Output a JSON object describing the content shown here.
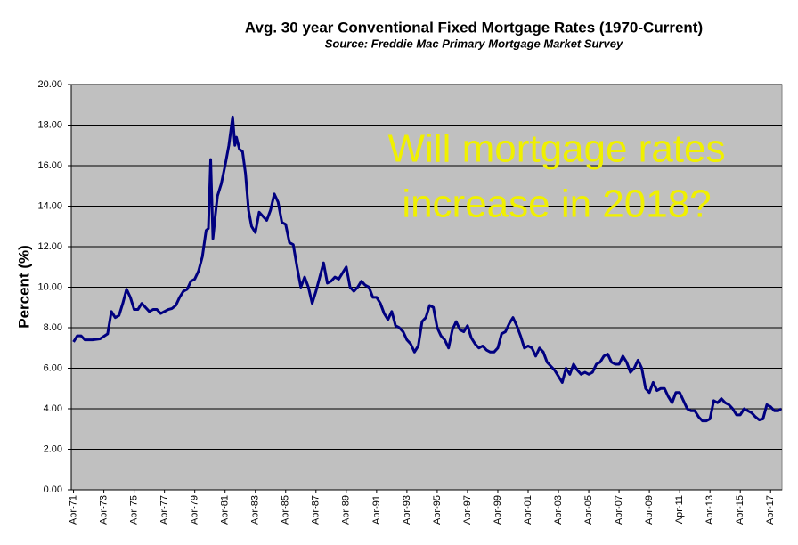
{
  "chart_data": {
    "type": "line",
    "title": "Avg. 30 year Conventional Fixed Mortgage Rates (1970-Current)",
    "subtitle": "Source: Freddie Mac Primary Mortgage Market Survey",
    "y_label": "Percent (%)",
    "annotation": [
      "Will mortgage rates",
      "increase in 2018?"
    ],
    "color": "#000080",
    "grid": true,
    "xlim": [
      1971.1,
      2018.0
    ],
    "ylim": [
      0,
      20
    ],
    "yticks": [
      {
        "value": 0,
        "label": "0.00"
      },
      {
        "value": 2,
        "label": "2.00"
      },
      {
        "value": 4,
        "label": "4.00"
      },
      {
        "value": 6,
        "label": "6.00"
      },
      {
        "value": 8,
        "label": "8.00"
      },
      {
        "value": 10,
        "label": "10.00"
      },
      {
        "value": 12,
        "label": "12.00"
      },
      {
        "value": 14,
        "label": "14.00"
      },
      {
        "value": 16,
        "label": "16.00"
      },
      {
        "value": 18,
        "label": "18.00"
      },
      {
        "value": 20,
        "label": "20.00"
      }
    ],
    "xticks": [
      {
        "value": 1971.25,
        "label": "Apr-71"
      },
      {
        "value": 1973.25,
        "label": "Apr-73"
      },
      {
        "value": 1975.25,
        "label": "Apr-75"
      },
      {
        "value": 1977.25,
        "label": "Apr-77"
      },
      {
        "value": 1979.25,
        "label": "Apr-79"
      },
      {
        "value": 1981.25,
        "label": "Apr-81"
      },
      {
        "value": 1983.25,
        "label": "Apr-83"
      },
      {
        "value": 1985.25,
        "label": "Apr-85"
      },
      {
        "value": 1987.25,
        "label": "Apr-87"
      },
      {
        "value": 1989.25,
        "label": "Apr-89"
      },
      {
        "value": 1991.25,
        "label": "Apr-91"
      },
      {
        "value": 1993.25,
        "label": "Apr-93"
      },
      {
        "value": 1995.25,
        "label": "Apr-95"
      },
      {
        "value": 1997.25,
        "label": "Apr-97"
      },
      {
        "value": 1999.25,
        "label": "Apr-99"
      },
      {
        "value": 2001.25,
        "label": "Apr-01"
      },
      {
        "value": 2003.25,
        "label": "Apr-03"
      },
      {
        "value": 2005.25,
        "label": "Apr-05"
      },
      {
        "value": 2007.25,
        "label": "Apr-07"
      },
      {
        "value": 2009.25,
        "label": "Apr-09"
      },
      {
        "value": 2011.25,
        "label": "Apr-11"
      },
      {
        "value": 2013.25,
        "label": "Apr-13"
      },
      {
        "value": 2015.25,
        "label": "Apr-15"
      },
      {
        "value": 2017.25,
        "label": "Apr-17"
      }
    ],
    "x": [
      1971.25,
      1971.5,
      1971.75,
      1972.0,
      1972.5,
      1973.0,
      1973.5,
      1973.75,
      1974.0,
      1974.25,
      1974.5,
      1974.75,
      1975.0,
      1975.25,
      1975.5,
      1975.75,
      1976.0,
      1976.25,
      1976.5,
      1976.75,
      1977.0,
      1977.25,
      1977.5,
      1977.75,
      1978.0,
      1978.25,
      1978.5,
      1978.75,
      1979.0,
      1979.25,
      1979.5,
      1979.75,
      1980.0,
      1980.15,
      1980.3,
      1980.45,
      1980.6,
      1980.75,
      1981.0,
      1981.25,
      1981.5,
      1981.75,
      1981.9,
      1982.0,
      1982.2,
      1982.4,
      1982.6,
      1982.8,
      1983.0,
      1983.25,
      1983.5,
      1983.75,
      1984.0,
      1984.25,
      1984.5,
      1984.75,
      1985.0,
      1985.25,
      1985.5,
      1985.75,
      1986.0,
      1986.25,
      1986.5,
      1986.75,
      1987.0,
      1987.25,
      1987.5,
      1987.75,
      1988.0,
      1988.25,
      1988.5,
      1988.75,
      1989.0,
      1989.25,
      1989.5,
      1989.75,
      1990.0,
      1990.25,
      1990.5,
      1990.75,
      1991.0,
      1991.25,
      1991.5,
      1991.75,
      1992.0,
      1992.25,
      1992.5,
      1992.75,
      1993.0,
      1993.25,
      1993.5,
      1993.75,
      1994.0,
      1994.25,
      1994.5,
      1994.75,
      1995.0,
      1995.25,
      1995.5,
      1995.75,
      1996.0,
      1996.25,
      1996.5,
      1996.75,
      1997.0,
      1997.25,
      1997.5,
      1997.75,
      1998.0,
      1998.25,
      1998.5,
      1998.75,
      1999.0,
      1999.25,
      1999.5,
      1999.75,
      2000.0,
      2000.25,
      2000.5,
      2000.75,
      2001.0,
      2001.25,
      2001.5,
      2001.75,
      2002.0,
      2002.25,
      2002.5,
      2002.75,
      2003.0,
      2003.25,
      2003.5,
      2003.75,
      2004.0,
      2004.25,
      2004.5,
      2004.75,
      2005.0,
      2005.25,
      2005.5,
      2005.75,
      2006.0,
      2006.25,
      2006.5,
      2006.75,
      2007.0,
      2007.25,
      2007.5,
      2007.75,
      2008.0,
      2008.25,
      2008.5,
      2008.75,
      2009.0,
      2009.25,
      2009.5,
      2009.75,
      2010.0,
      2010.25,
      2010.5,
      2010.75,
      2011.0,
      2011.25,
      2011.5,
      2011.75,
      2012.0,
      2012.25,
      2012.5,
      2012.75,
      2013.0,
      2013.25,
      2013.5,
      2013.75,
      2014.0,
      2014.25,
      2014.5,
      2014.75,
      2015.0,
      2015.25,
      2015.5,
      2015.75,
      2016.0,
      2016.25,
      2016.5,
      2016.75,
      2017.0,
      2017.25,
      2017.5,
      2017.75,
      2017.95
    ],
    "values": [
      7.3,
      7.6,
      7.6,
      7.4,
      7.4,
      7.45,
      7.7,
      8.8,
      8.5,
      8.6,
      9.2,
      9.9,
      9.5,
      8.9,
      8.9,
      9.2,
      9.0,
      8.8,
      8.9,
      8.9,
      8.7,
      8.8,
      8.9,
      8.95,
      9.1,
      9.5,
      9.8,
      9.9,
      10.3,
      10.4,
      10.8,
      11.5,
      12.8,
      12.9,
      16.3,
      12.4,
      13.5,
      14.5,
      15.1,
      16.0,
      17.0,
      18.4,
      17.0,
      17.4,
      16.8,
      16.7,
      15.6,
      13.8,
      13.0,
      12.7,
      13.7,
      13.5,
      13.3,
      13.8,
      14.6,
      14.2,
      13.2,
      13.1,
      12.2,
      12.1,
      11.0,
      10.0,
      10.5,
      10.0,
      9.2,
      9.8,
      10.5,
      11.2,
      10.2,
      10.3,
      10.5,
      10.4,
      10.7,
      11.0,
      10.0,
      9.8,
      10.0,
      10.3,
      10.1,
      10.0,
      9.5,
      9.5,
      9.2,
      8.7,
      8.4,
      8.8,
      8.1,
      8.0,
      7.8,
      7.4,
      7.2,
      6.8,
      7.1,
      8.3,
      8.5,
      9.1,
      9.0,
      8.0,
      7.6,
      7.4,
      7.0,
      7.9,
      8.3,
      7.9,
      7.8,
      8.1,
      7.5,
      7.2,
      7.0,
      7.1,
      6.9,
      6.8,
      6.8,
      7.0,
      7.7,
      7.8,
      8.2,
      8.5,
      8.1,
      7.6,
      7.0,
      7.1,
      7.0,
      6.6,
      7.0,
      6.8,
      6.3,
      6.1,
      5.9,
      5.6,
      5.3,
      6.0,
      5.7,
      6.2,
      5.9,
      5.7,
      5.8,
      5.7,
      5.8,
      6.2,
      6.3,
      6.6,
      6.7,
      6.3,
      6.2,
      6.2,
      6.6,
      6.3,
      5.8,
      6.0,
      6.4,
      6.0,
      5.0,
      4.8,
      5.3,
      4.9,
      5.0,
      5.0,
      4.6,
      4.3,
      4.8,
      4.8,
      4.4,
      4.0,
      3.9,
      3.9,
      3.6,
      3.4,
      3.4,
      3.5,
      4.4,
      4.3,
      4.5,
      4.3,
      4.2,
      4.0,
      3.7,
      3.7,
      4.0,
      3.9,
      3.8,
      3.6,
      3.45,
      3.5,
      4.2,
      4.1,
      3.9,
      3.9,
      4.0
    ]
  }
}
